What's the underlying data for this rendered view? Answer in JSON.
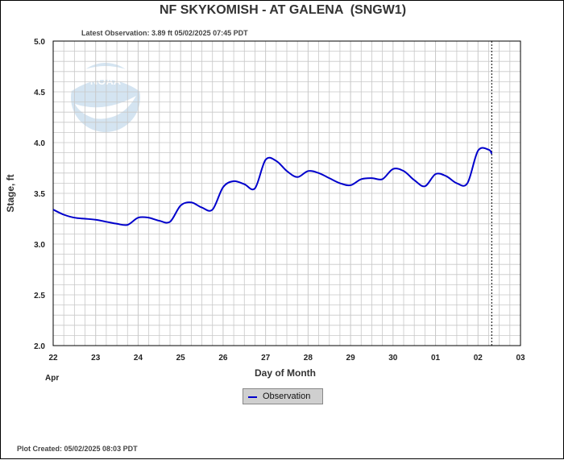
{
  "header": {
    "title": "NF SKYKOMISH - AT GALENA  (SNGW1)",
    "latest_observation": "Latest Observation: 3.89 ft 05/02/2025 07:45 PDT"
  },
  "footer": {
    "plot_created": "Plot Created: 05/02/2025 08:03 PDT"
  },
  "logo": {
    "text": "NOAA"
  },
  "legend": {
    "observation_label": "Observation"
  },
  "colors": {
    "observation": "#0000cc",
    "grid": "#c8c8c8",
    "frame": "#000000"
  },
  "chart_data": {
    "type": "line",
    "title": "NF SKYKOMISH - AT GALENA  (SNGW1)",
    "xlabel": "Day of Month",
    "ylabel": "Stage, ft",
    "x_month_label": "Apr",
    "x_ticks": [
      "22",
      "23",
      "24",
      "25",
      "26",
      "27",
      "28",
      "29",
      "30",
      "01",
      "02",
      "03"
    ],
    "y_ticks": [
      "2.0",
      "2.5",
      "3.0",
      "3.5",
      "4.0",
      "4.5",
      "5.0"
    ],
    "ylim": [
      2.0,
      5.0
    ],
    "xlim": [
      "2025-04-22 00:00",
      "2025-05-03 00:00"
    ],
    "grid": true,
    "legend_position": "bottom-center",
    "current_time_marker": "2025-05-02 07:45",
    "series": [
      {
        "name": "Observation",
        "x": [
          "2025-04-22 00:00",
          "2025-04-22 06:00",
          "2025-04-22 12:00",
          "2025-04-22 18:00",
          "2025-04-23 00:00",
          "2025-04-23 06:00",
          "2025-04-23 12:00",
          "2025-04-23 18:00",
          "2025-04-24 00:00",
          "2025-04-24 06:00",
          "2025-04-24 12:00",
          "2025-04-24 18:00",
          "2025-04-25 00:00",
          "2025-04-25 06:00",
          "2025-04-25 12:00",
          "2025-04-25 18:00",
          "2025-04-26 00:00",
          "2025-04-26 06:00",
          "2025-04-26 12:00",
          "2025-04-26 18:00",
          "2025-04-27 00:00",
          "2025-04-27 06:00",
          "2025-04-27 12:00",
          "2025-04-27 18:00",
          "2025-04-28 00:00",
          "2025-04-28 06:00",
          "2025-04-28 12:00",
          "2025-04-28 18:00",
          "2025-04-29 00:00",
          "2025-04-29 06:00",
          "2025-04-29 12:00",
          "2025-04-29 18:00",
          "2025-04-30 00:00",
          "2025-04-30 06:00",
          "2025-04-30 12:00",
          "2025-04-30 18:00",
          "2025-05-01 00:00",
          "2025-05-01 06:00",
          "2025-05-01 12:00",
          "2025-05-01 18:00",
          "2025-05-02 00:00",
          "2025-05-02 06:00",
          "2025-05-02 07:45"
        ],
        "y": [
          3.34,
          3.29,
          3.26,
          3.25,
          3.24,
          3.22,
          3.2,
          3.19,
          3.26,
          3.26,
          3.23,
          3.22,
          3.38,
          3.41,
          3.36,
          3.34,
          3.56,
          3.62,
          3.59,
          3.55,
          3.83,
          3.82,
          3.72,
          3.66,
          3.72,
          3.7,
          3.65,
          3.6,
          3.58,
          3.64,
          3.65,
          3.64,
          3.74,
          3.72,
          3.63,
          3.57,
          3.69,
          3.67,
          3.6,
          3.6,
          3.92,
          3.93,
          3.89
        ]
      }
    ]
  }
}
